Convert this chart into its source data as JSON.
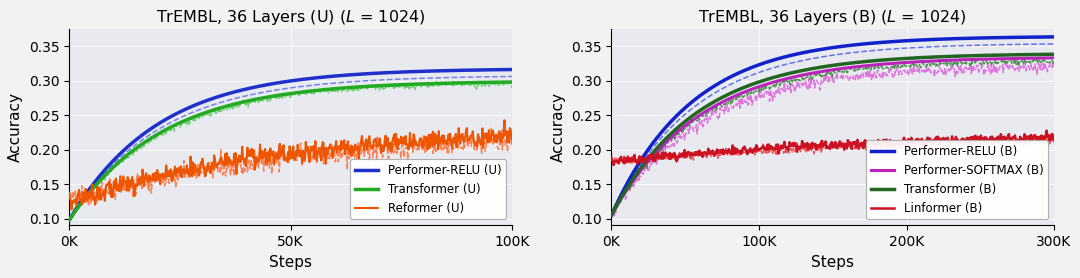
{
  "bg_color": "#e8eaf0",
  "fig_bg": "#f2f2f2",
  "left": {
    "title": "TrEMBL, 36 Layers (U) ($\\mathit{L}$ = 1024)",
    "xlim": [
      0,
      100000
    ],
    "ylim": [
      0.09,
      0.375
    ],
    "yticks": [
      0.1,
      0.15,
      0.2,
      0.25,
      0.3,
      0.35
    ],
    "xtick_vals": [
      0,
      50000,
      100000
    ],
    "xtick_labels": [
      "0K",
      "50K",
      "100K"
    ],
    "series": [
      {
        "label": "Performer-RELU (U)",
        "color": "#2030cc",
        "lw": 2.5,
        "ystart": 0.098,
        "yend": 0.318,
        "rate": 5.0,
        "noise": 0.0,
        "seed": 1
      },
      {
        "label": "Transformer (U)",
        "color": "#22aa22",
        "lw": 2.5,
        "ystart": 0.098,
        "yend": 0.3,
        "rate": 4.8,
        "noise": 0.0,
        "seed": 2
      },
      {
        "label": "Reformer (U)",
        "color": "#ee5500",
        "lw": 1.5,
        "ystart": 0.125,
        "yend": 0.235,
        "rate": 2.0,
        "noise": 0.007,
        "seed": 3
      }
    ],
    "dashed_series": [
      {
        "color": "#6677ee",
        "lw": 1.1,
        "ystart": 0.098,
        "yend": 0.308,
        "rate": 4.9,
        "noise": 0.0,
        "seed": 11
      },
      {
        "color": "#66cc66",
        "lw": 1.1,
        "ystart": 0.098,
        "yend": 0.298,
        "rate": 4.7,
        "noise": 0.002,
        "seed": 12
      },
      {
        "color": "#ff7744",
        "lw": 1.1,
        "ystart": 0.125,
        "yend": 0.228,
        "rate": 1.9,
        "noise": 0.008,
        "seed": 13
      }
    ],
    "legend_labels": [
      "Performer-RELU (U)",
      "Transformer (U)",
      "Reformer (U)"
    ],
    "legend_colors": [
      "#2030cc",
      "#22aa22",
      "#ee5500"
    ],
    "legend_lws": [
      2.5,
      2.5,
      1.5
    ]
  },
  "right": {
    "title": "TrEMBL, 36 Layers (B) ($\\mathit{L}$ = 1024)",
    "xlim": [
      0,
      300000
    ],
    "ylim": [
      0.09,
      0.375
    ],
    "yticks": [
      0.1,
      0.15,
      0.2,
      0.25,
      0.3,
      0.35
    ],
    "xtick_vals": [
      0,
      100000,
      200000,
      300000
    ],
    "xtick_labels": [
      "0K",
      "100K",
      "200K",
      "300K"
    ],
    "series": [
      {
        "label": "Performer-RELU (B)",
        "color": "#1122cc",
        "lw": 2.5,
        "ystart": 0.105,
        "yend": 0.365,
        "rate": 5.5,
        "noise": 0.0,
        "seed": 1
      },
      {
        "label": "Performer-SOFTMAX (B)",
        "color": "#bb22bb",
        "lw": 2.2,
        "ystart": 0.105,
        "yend": 0.335,
        "rate": 5.0,
        "noise": 0.0,
        "seed": 4
      },
      {
        "label": "Transformer (B)",
        "color": "#226622",
        "lw": 2.5,
        "ystart": 0.105,
        "yend": 0.34,
        "rate": 5.2,
        "noise": 0.0,
        "seed": 2
      },
      {
        "label": "Linformer (B)",
        "color": "#cc1122",
        "lw": 1.8,
        "ystart": 0.183,
        "yend": 0.228,
        "rate": 1.5,
        "noise": 0.003,
        "seed": 3
      }
    ],
    "dashed_series": [
      {
        "color": "#5566ee",
        "lw": 1.1,
        "ystart": 0.105,
        "yend": 0.355,
        "rate": 5.3,
        "noise": 0.0,
        "seed": 11
      },
      {
        "color": "#dd66dd",
        "lw": 1.1,
        "ystart": 0.105,
        "yend": 0.322,
        "rate": 4.8,
        "noise": 0.004,
        "seed": 14
      },
      {
        "color": "#448844",
        "lw": 1.1,
        "ystart": 0.105,
        "yend": 0.33,
        "rate": 5.0,
        "noise": 0.002,
        "seed": 12
      },
      {
        "color": "#ee4444",
        "lw": 1.1,
        "ystart": 0.183,
        "yend": 0.222,
        "rate": 1.4,
        "noise": 0.003,
        "seed": 13
      }
    ],
    "legend_labels": [
      "Performer-RELU (B)",
      "Performer-SOFTMAX (B)",
      "Transformer (B)",
      "Linformer (B)"
    ],
    "legend_colors": [
      "#1122cc",
      "#bb22bb",
      "#226622",
      "#cc1122"
    ],
    "legend_lws": [
      2.5,
      2.2,
      2.5,
      1.8
    ]
  }
}
